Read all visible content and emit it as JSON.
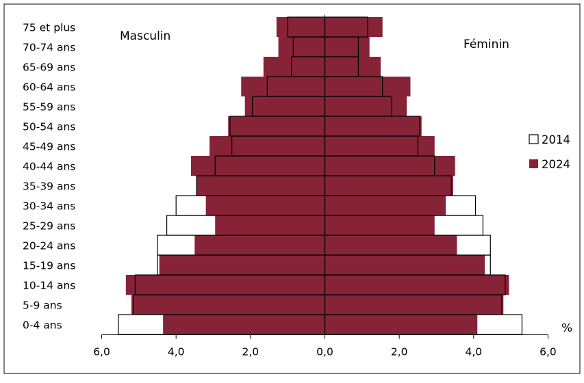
{
  "chart_data": {
    "type": "bar",
    "orientation": "horizontal",
    "title": "",
    "xlabel": "",
    "ylabel": "",
    "unit_label": "%",
    "left_label": "Masculin",
    "right_label": "Féminin",
    "categories": [
      "0-4 ans",
      "5-9 ans",
      "10-14 ans",
      "15-19 ans",
      "20-24 ans",
      "25-29 ans",
      "30-34 ans",
      "35-39 ans",
      "40-44 ans",
      "45-49 ans",
      "50-54 ans",
      "55-59 ans",
      "60-64 ans",
      "65-69 ans",
      "70-74 ans",
      "75 et plus"
    ],
    "x_ticks": [
      "6,0",
      "4,0",
      "2,0",
      "0,0",
      "2,0",
      "4,0",
      "6,0"
    ],
    "xlim": [
      -6,
      6
    ],
    "grid": false,
    "legend_position": "right",
    "series": [
      {
        "name": "2014",
        "color": "#ffffff",
        "male": [
          5.55,
          5.15,
          5.1,
          4.5,
          4.5,
          4.25,
          4.0,
          3.45,
          2.95,
          2.5,
          2.55,
          1.95,
          1.55,
          0.9,
          0.85,
          1.0
        ],
        "female": [
          5.3,
          4.75,
          4.85,
          4.45,
          4.45,
          4.25,
          4.05,
          3.4,
          2.95,
          2.5,
          2.55,
          1.8,
          1.55,
          0.9,
          0.9,
          1.15
        ]
      },
      {
        "name": "2024",
        "color": "#862337",
        "male": [
          4.35,
          5.2,
          5.35,
          4.45,
          3.5,
          2.95,
          3.2,
          3.45,
          3.6,
          3.1,
          2.6,
          2.15,
          2.25,
          1.65,
          1.25,
          1.3
        ],
        "female": [
          4.1,
          4.8,
          4.95,
          4.3,
          3.55,
          2.95,
          3.25,
          3.45,
          3.5,
          2.95,
          2.6,
          2.2,
          2.3,
          1.5,
          1.2,
          1.55
        ]
      }
    ]
  }
}
